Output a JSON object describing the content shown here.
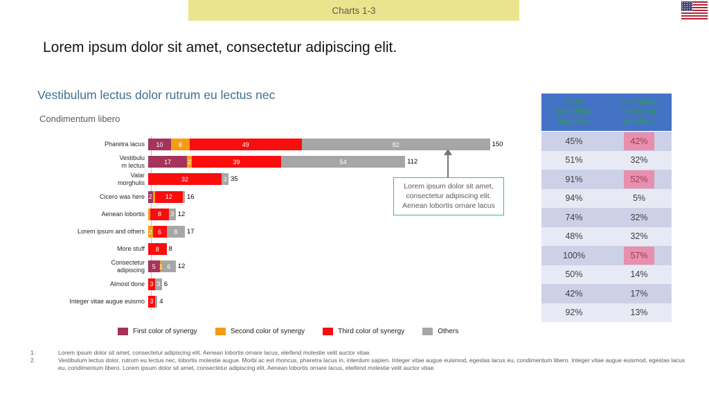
{
  "banner": {
    "title": "Charts 1-3",
    "bg": "#ebe48e"
  },
  "flag_icon": "us-flag",
  "slide_title": "Lorem ipsum dolor sit amet, consectetur adipiscing elit.",
  "section_heading": "Vestibulum lectus dolor rutrum eu lectus nec",
  "chart_data": {
    "type": "bar",
    "orientation": "horizontal",
    "stacked": true,
    "title": "Condimentum libero",
    "xlim": [
      0,
      150
    ],
    "grid": false,
    "legend_position": "bottom",
    "series_colors": {
      "first": "#a5335c",
      "second": "#f49c12",
      "third": "#f90d0d",
      "others": "#a6a6a6"
    },
    "legend": [
      {
        "key": "first",
        "label": "First color of synergy"
      },
      {
        "key": "second",
        "label": "Second color of synergy"
      },
      {
        "key": "third",
        "label": "Third color of synergy"
      },
      {
        "key": "others",
        "label": "Others"
      }
    ],
    "rows": [
      {
        "label": "Pharetra lacus",
        "segments": [
          {
            "series": "first",
            "value": 10,
            "label": "10"
          },
          {
            "series": "second",
            "value": 8,
            "label": "8"
          },
          {
            "series": "third",
            "value": 49,
            "label": "49"
          },
          {
            "series": "others",
            "value": 82,
            "label": "82"
          }
        ],
        "total": "150"
      },
      {
        "label": "Vestibulu\nm lectus",
        "segments": [
          {
            "series": "first",
            "value": 17,
            "label": "17"
          },
          {
            "series": "second",
            "value": 2,
            "label": "2"
          },
          {
            "series": "third",
            "value": 39,
            "label": "39"
          },
          {
            "series": "others",
            "value": 54,
            "label": "54"
          }
        ],
        "total": "112"
      },
      {
        "label": "Valar\nmorghulis",
        "segments": [
          {
            "series": "third",
            "value": 32,
            "label": "32"
          },
          {
            "series": "others",
            "value": 3,
            "label": "3"
          }
        ],
        "total": "35"
      },
      {
        "label": "Cicero was here",
        "segments": [
          {
            "series": "first",
            "value": 2,
            "label": "2"
          },
          {
            "series": "second",
            "value": 1,
            "label": ""
          },
          {
            "series": "third",
            "value": 12,
            "label": "12"
          },
          {
            "series": "others",
            "value": 1,
            "label": ""
          }
        ],
        "total": "16"
      },
      {
        "label": "Aenean lobortis",
        "segments": [
          {
            "series": "second",
            "value": 1,
            "label": ""
          },
          {
            "series": "third",
            "value": 8,
            "label": "8"
          },
          {
            "series": "others",
            "value": 3,
            "label": "3"
          }
        ],
        "total": "12"
      },
      {
        "label": "Lorem ipsum and others",
        "segments": [
          {
            "series": "second",
            "value": 2,
            "label": "2"
          },
          {
            "series": "third",
            "value": 6,
            "label": "6"
          },
          {
            "series": "others",
            "value": 8,
            "label": "8"
          }
        ],
        "total": "17"
      },
      {
        "label": "More stuff",
        "segments": [
          {
            "series": "third",
            "value": 8,
            "label": "8"
          }
        ],
        "total": "8"
      },
      {
        "label": "Consectetur\nadipiscing",
        "segments": [
          {
            "series": "first",
            "value": 5,
            "label": "5"
          },
          {
            "series": "second",
            "value": 1,
            "label": "1"
          },
          {
            "series": "others",
            "value": 6,
            "label": "6"
          }
        ],
        "total": "12"
      },
      {
        "label": "Almost done",
        "segments": [
          {
            "series": "third",
            "value": 3,
            "label": "3"
          },
          {
            "series": "others",
            "value": 3,
            "label": "3"
          }
        ],
        "total": "6"
      },
      {
        "label": "Integer vitae augue euismo",
        "segments": [
          {
            "series": "third",
            "value": 3,
            "label": "3"
          },
          {
            "series": "others",
            "value": 1,
            "label": ""
          }
        ],
        "total": "4"
      }
    ]
  },
  "callout": {
    "text": "Lorem ipsum dolor sit amet, consectetur adipiscing elit. Aenean lobortis ornare lacus",
    "border_color": "#3cb89a"
  },
  "table": {
    "headers": [
      "% of something important",
      "% of other important numbers"
    ],
    "header_bg": "#4472c4",
    "header_text_color": "#2f9e4e",
    "row_bg_dark": "#ccd1e7",
    "row_bg_light": "#e7e9f4",
    "highlight_bg": "#e78fad",
    "highlight_text": "#9c3e5b",
    "rows": [
      {
        "col1": "45%",
        "col2": "42%",
        "col2_highlight": true
      },
      {
        "col1": "51%",
        "col2": "32%",
        "col2_highlight": false
      },
      {
        "col1": "91%",
        "col2": "52%",
        "col2_highlight": true
      },
      {
        "col1": "94%",
        "col2": "5%",
        "col2_highlight": false
      },
      {
        "col1": "74%",
        "col2": "32%",
        "col2_highlight": false
      },
      {
        "col1": "48%",
        "col2": "32%",
        "col2_highlight": false
      },
      {
        "col1": "100%",
        "col2": "57%",
        "col2_highlight": true
      },
      {
        "col1": "50%",
        "col2": "14%",
        "col2_highlight": false
      },
      {
        "col1": "42%",
        "col2": "17%",
        "col2_highlight": false
      },
      {
        "col1": "92%",
        "col2": "13%",
        "col2_highlight": false
      }
    ]
  },
  "footnotes": [
    "Lorem ipsum dolor sit amet, consectetur adipiscing elit. Aenean lobortis ornare lacus, eleifend molestie velit auctor vitae.",
    "Vestibulum lectus dolor, rutrum eu lectus nec, lobortis molestie augue. Morbi ac est rhoncus, pharetra lacus in, interdum sapien. Integer vitae augue euismod, egestas lacus eu, condimentum libero. Integer vitae augue euismod, egestas lacus eu, condimentum libero. Lorem ipsum dolor sit amet, consectetur adipiscing elit. Aenean lobortis ornare lacus, eleifend molestie velit auctor vitae."
  ]
}
